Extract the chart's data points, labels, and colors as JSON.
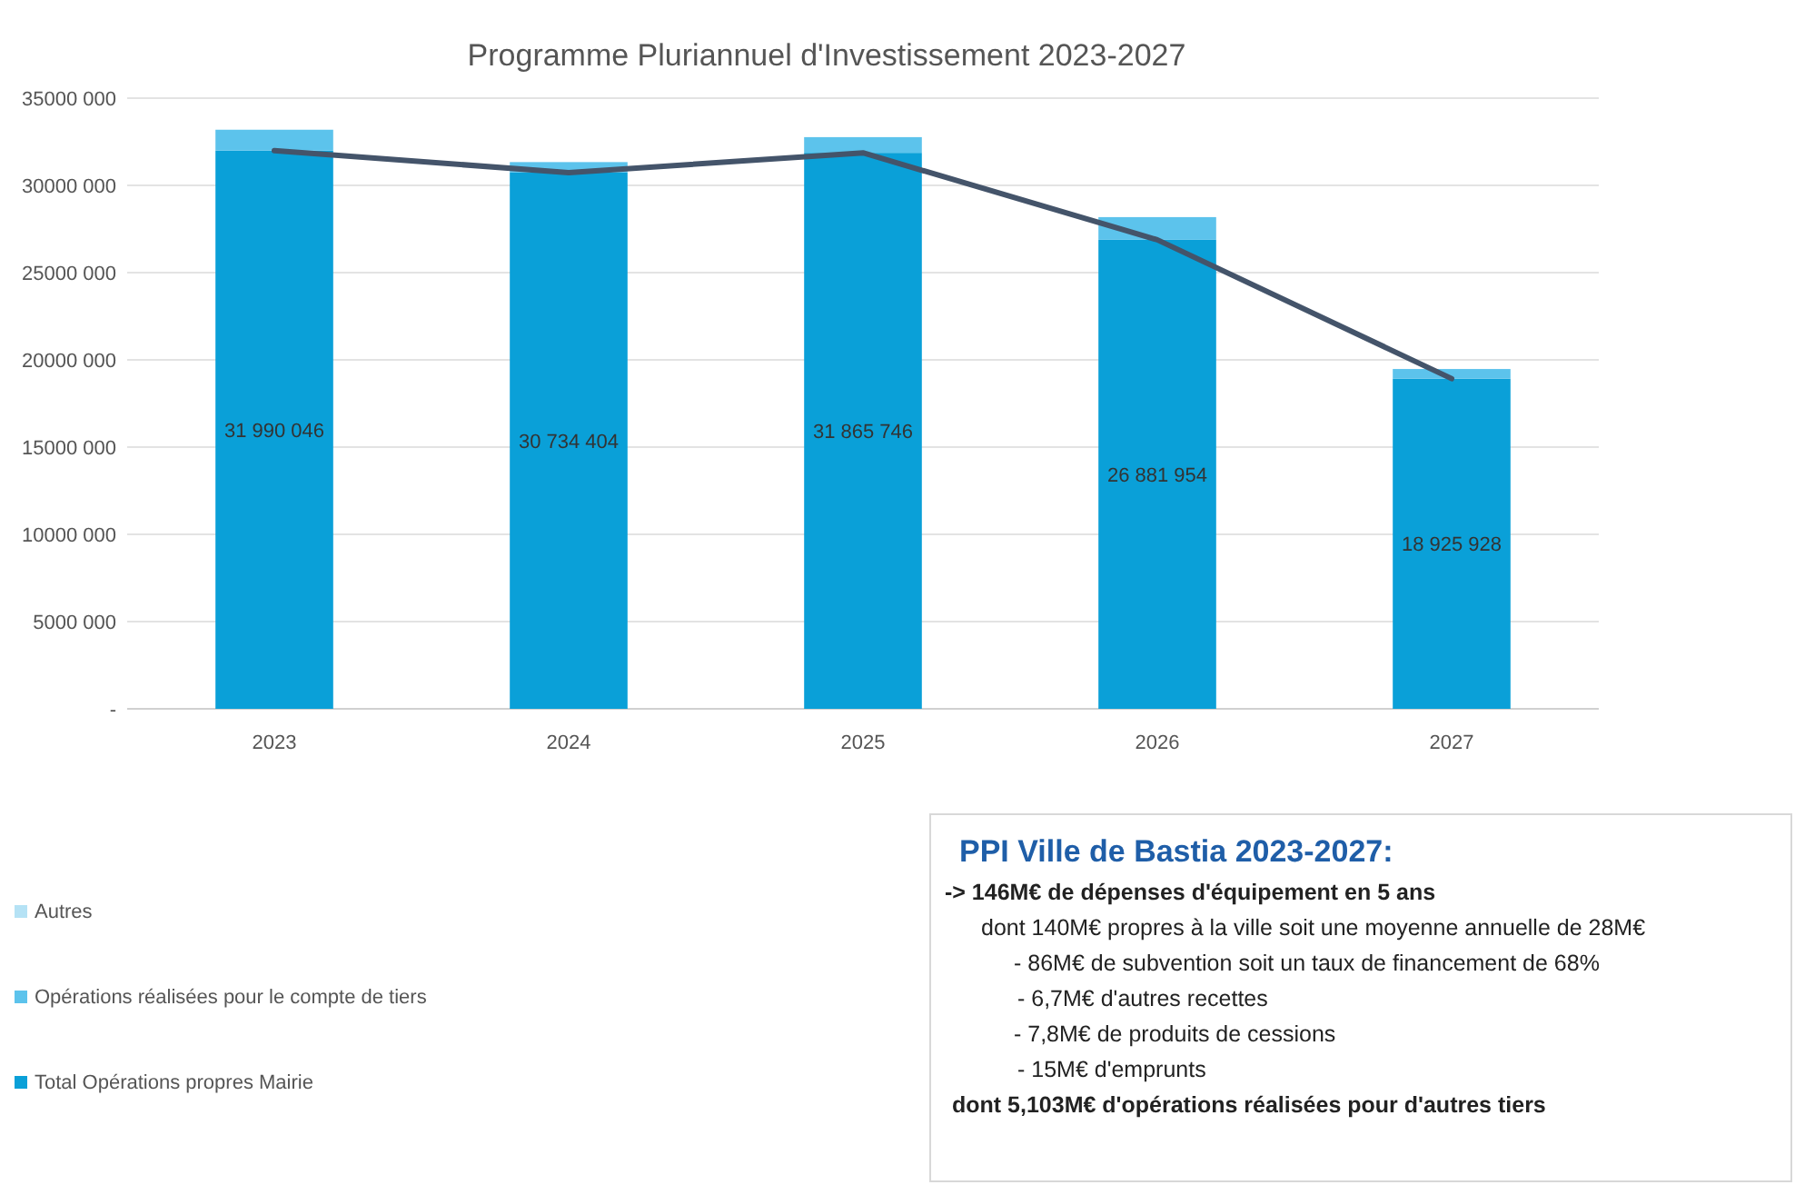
{
  "chart_data": {
    "type": "bar",
    "title": "Programme Pluriannuel d'Investissement 2023-2027",
    "categories": [
      "2023",
      "2024",
      "2025",
      "2026",
      "2027"
    ],
    "stacked": true,
    "series": [
      {
        "name": "Total Opérations propres Mairie",
        "color": "#0aa0d8",
        "values": [
          31990046,
          30734404,
          31865746,
          26881954,
          18925928
        ],
        "value_labels": [
          "31 990 046",
          "30 734 404",
          "31 865 746",
          "26 881 954",
          "18 925 928"
        ]
      },
      {
        "name": "Opérations réalisées pour le compte de tiers",
        "color": "#5cc3ec",
        "values": [
          1200000,
          600000,
          900000,
          1300000,
          550000
        ]
      },
      {
        "name": "Autres",
        "color": "#b5e2f5",
        "values": [
          0,
          0,
          0,
          0,
          0
        ]
      },
      {
        "type": "line",
        "color": "#44546a",
        "values": [
          31990046,
          30734404,
          31865746,
          26881954,
          18925928
        ]
      }
    ],
    "ylim": [
      0,
      35000000
    ],
    "yticks": [
      {
        "value": 0,
        "label": "-"
      },
      {
        "value": 5000000,
        "label": "5000 000"
      },
      {
        "value": 10000000,
        "label": "10000 000"
      },
      {
        "value": 15000000,
        "label": "15000 000"
      },
      {
        "value": 20000000,
        "label": "20000 000"
      },
      {
        "value": 25000000,
        "label": "25000 000"
      },
      {
        "value": 30000000,
        "label": "30000 000"
      },
      {
        "value": 35000000,
        "label": "35000 000"
      }
    ],
    "grid": "y",
    "legend": "bottom left",
    "annotations": [
      "PPI Ville de Bastia 2023-2027:",
      "-> 146M€ de dépenses d'équipement en 5 ans",
      "dont 140M€ propres à la ville soit une moyenne annuelle de 28M€",
      "- 86M€ de subvention soit un taux de financement de 68%",
      "- 6,7M€ d'autres recettes",
      "- 7,8M€ de produits de cessions",
      "- 15M€ d'emprunts",
      "dont 5,103M€ d'opérations réalisées pour d'autres tiers"
    ]
  }
}
